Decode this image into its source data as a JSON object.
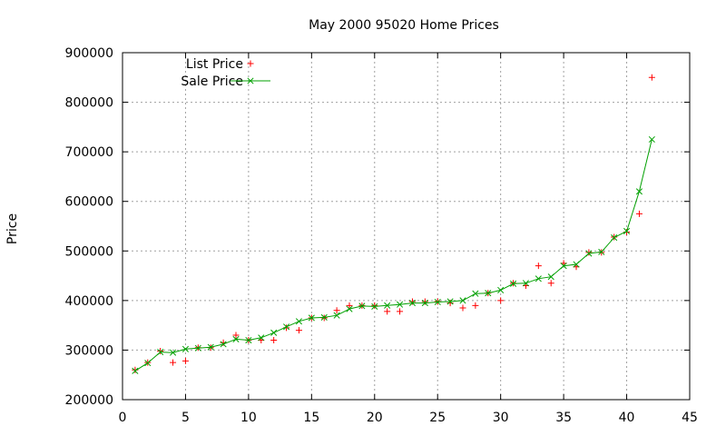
{
  "chart_data": {
    "type": "scatter",
    "title": "May 2000 95020 Home Prices",
    "xlabel": "",
    "ylabel": "Price",
    "xlim": [
      0,
      45
    ],
    "ylim": [
      200000,
      900000
    ],
    "xticks": [
      0,
      5,
      10,
      15,
      20,
      25,
      30,
      35,
      40,
      45
    ],
    "yticks": [
      200000,
      300000,
      400000,
      500000,
      600000,
      700000,
      800000,
      900000
    ],
    "grid": true,
    "legend_position": "top-left",
    "series": [
      {
        "name": "List Price",
        "style": "points",
        "marker": "plus",
        "color": "#ff0000",
        "x": [
          1,
          2,
          3,
          4,
          5,
          6,
          7,
          8,
          9,
          10,
          11,
          12,
          13,
          14,
          15,
          16,
          17,
          18,
          19,
          20,
          21,
          22,
          23,
          24,
          25,
          26,
          27,
          28,
          29,
          30,
          31,
          32,
          33,
          34,
          35,
          36,
          37,
          38,
          39,
          40,
          41,
          42
        ],
        "values": [
          260000,
          275000,
          298000,
          275000,
          278000,
          305000,
          305000,
          315000,
          330000,
          320000,
          320000,
          320000,
          345000,
          340000,
          365000,
          365000,
          380000,
          390000,
          390000,
          390000,
          378000,
          378000,
          398000,
          398000,
          398000,
          395000,
          385000,
          390000,
          415000,
          400000,
          435000,
          430000,
          470000,
          435000,
          475000,
          468000,
          497000,
          497000,
          528000,
          538000,
          575000,
          850000
        ]
      },
      {
        "name": "Sale Price",
        "style": "linespoints",
        "marker": "cross",
        "color": "#00a000",
        "x": [
          1,
          2,
          3,
          4,
          5,
          6,
          7,
          8,
          9,
          10,
          11,
          12,
          13,
          14,
          15,
          16,
          17,
          18,
          19,
          20,
          21,
          22,
          23,
          24,
          25,
          26,
          27,
          28,
          29,
          30,
          31,
          32,
          33,
          34,
          35,
          36,
          37,
          38,
          39,
          40,
          41,
          42
        ],
        "values": [
          258000,
          274000,
          296000,
          295000,
          302000,
          304000,
          306000,
          312000,
          322000,
          320000,
          325000,
          335000,
          347000,
          358000,
          365000,
          366000,
          370000,
          383000,
          389000,
          388000,
          390000,
          392000,
          395000,
          395000,
          397000,
          398000,
          400000,
          414000,
          415000,
          421000,
          434000,
          435000,
          444000,
          448000,
          470000,
          473000,
          495000,
          498000,
          527000,
          540000,
          620000,
          725000
        ]
      }
    ]
  }
}
